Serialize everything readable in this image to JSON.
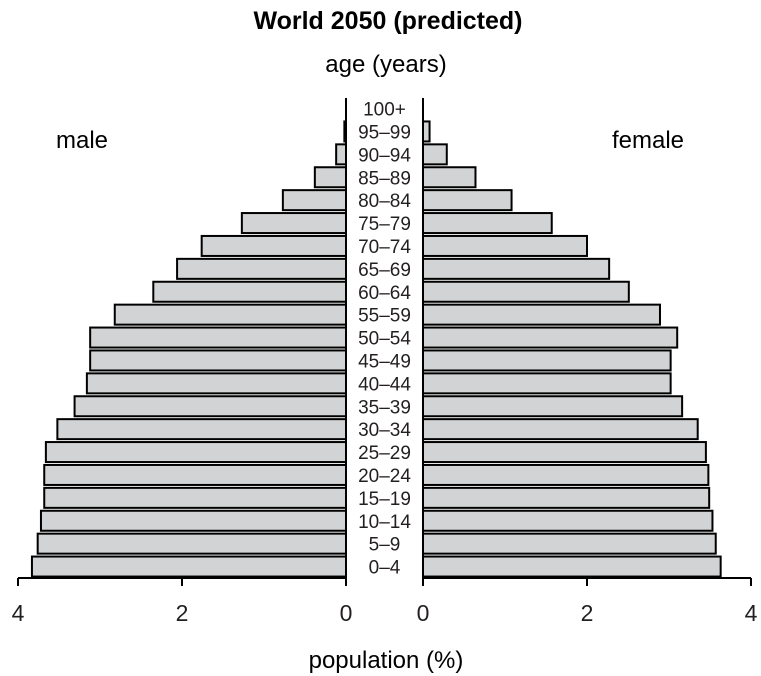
{
  "chart_data": {
    "type": "bar",
    "title": "World 2050 (predicted)",
    "subtitle": "age (years)",
    "xlabel": "population (%)",
    "colors": {
      "bar_fill": "#d1d3d4",
      "bar_stroke": "#000000",
      "text": "#231f20"
    },
    "xlim": [
      0,
      4
    ],
    "x_ticks": [
      "4",
      "2",
      "0",
      "0",
      "2",
      "4"
    ],
    "categories": [
      "0–4",
      "5–9",
      "10–14",
      "15–19",
      "20–24",
      "25–29",
      "30–34",
      "35–39",
      "40–44",
      "45–49",
      "50–54",
      "55–59",
      "60–64",
      "65–69",
      "70–74",
      "75–79",
      "80–84",
      "85–89",
      "90–94",
      "95–99",
      "100+"
    ],
    "series": [
      {
        "name": "male",
        "values": [
          3.83,
          3.76,
          3.72,
          3.68,
          3.68,
          3.66,
          3.52,
          3.31,
          3.16,
          3.12,
          3.12,
          2.82,
          2.35,
          2.06,
          1.76,
          1.27,
          0.77,
          0.38,
          0.12,
          0.02,
          0.0
        ]
      },
      {
        "name": "female",
        "values": [
          3.63,
          3.57,
          3.53,
          3.49,
          3.48,
          3.45,
          3.35,
          3.16,
          3.02,
          3.02,
          3.1,
          2.89,
          2.51,
          2.27,
          2.0,
          1.57,
          1.08,
          0.64,
          0.29,
          0.08,
          0.0
        ]
      }
    ]
  }
}
